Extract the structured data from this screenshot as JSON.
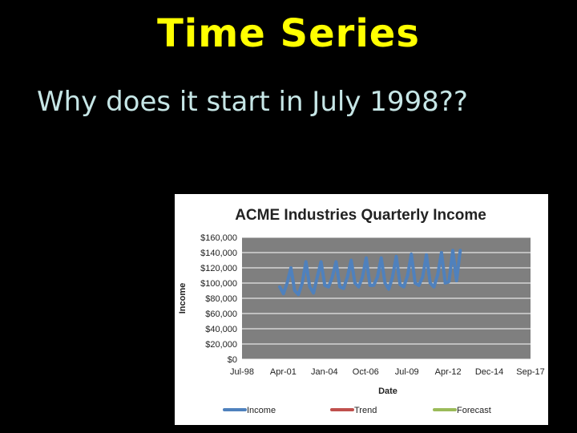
{
  "slide": {
    "title": "Time Series",
    "bullet": "Why does it start in July 1998??"
  },
  "chart_data": {
    "type": "line",
    "title": "ACME Industries Quarterly Income",
    "xlabel": "Date",
    "ylabel": "Income",
    "ylim": [
      0,
      160000
    ],
    "yticks": [
      0,
      20000,
      40000,
      60000,
      80000,
      100000,
      120000,
      140000,
      160000
    ],
    "ytick_labels": [
      "$0",
      "$20,000",
      "$40,000",
      "$60,000",
      "$80,000",
      "$100,000",
      "$120,000",
      "$140,000",
      "$160,000"
    ],
    "xlim": [
      "1998-07",
      "2017-09"
    ],
    "xtick_labels": [
      "Jul-98",
      "Apr-01",
      "Jan-04",
      "Oct-06",
      "Jul-09",
      "Apr-12",
      "Dec-14",
      "Sep-17"
    ],
    "grid": true,
    "legend": "bottom",
    "series": [
      {
        "name": "Income",
        "color": "#4f81bd",
        "x": [
          "2001-01",
          "2001-04",
          "2001-07",
          "2001-10",
          "2002-01",
          "2002-04",
          "2002-07",
          "2002-10",
          "2003-01",
          "2003-04",
          "2003-07",
          "2003-10",
          "2004-01",
          "2004-04",
          "2004-07",
          "2004-10",
          "2005-01",
          "2005-04",
          "2005-07",
          "2005-10",
          "2006-01",
          "2006-04",
          "2006-07",
          "2006-10",
          "2007-01",
          "2007-04",
          "2007-07",
          "2007-10",
          "2008-01",
          "2008-04",
          "2008-07",
          "2008-10",
          "2009-01",
          "2009-04",
          "2009-07",
          "2009-10",
          "2010-01",
          "2010-04",
          "2010-07",
          "2010-10",
          "2011-01",
          "2011-04",
          "2011-07",
          "2011-10",
          "2012-01",
          "2012-04",
          "2012-07",
          "2012-10",
          "2013-01"
        ],
        "values": [
          95000,
          86000,
          100000,
          120000,
          90000,
          85000,
          100000,
          128000,
          95000,
          87000,
          108000,
          128000,
          97000,
          95000,
          108000,
          128000,
          95000,
          93000,
          108000,
          130000,
          100000,
          95000,
          108000,
          133000,
          97000,
          97000,
          108000,
          133000,
          100000,
          92000,
          108000,
          135000,
          98000,
          95000,
          110000,
          138000,
          100000,
          97000,
          108000,
          137000,
          100000,
          95000,
          111000,
          140000,
          100000,
          102000,
          143000,
          103000,
          143000
        ]
      },
      {
        "name": "Trend",
        "color": "#c0504d",
        "values": []
      },
      {
        "name": "Forecast",
        "color": "#9bbb59",
        "values": []
      }
    ]
  }
}
